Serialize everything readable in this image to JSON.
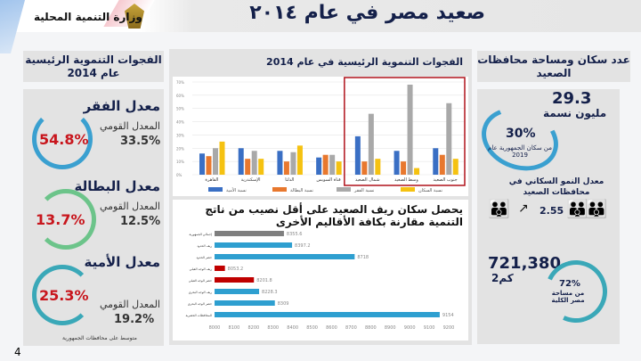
{
  "header": {
    "title": "صعيد مصر في عام ٢٠١٤",
    "ministry": "وزارة التنمية المحلية"
  },
  "left": {
    "title": "الفجوات التنموية الرئيسية عام 2014",
    "items": [
      {
        "heading": "معدل الفقر",
        "value": "54.8%",
        "national_label": "المعدل القومي",
        "national": "33.5%",
        "color": "#3aa0d0"
      },
      {
        "heading": "معدل البطالة",
        "value": "13.7%",
        "national_label": "المعدل القومي",
        "national": "12.5%",
        "color": "#6cc48a"
      },
      {
        "heading": "معدل الأمية",
        "value": "25.3%",
        "national_label": "المعدل القومي",
        "national": "19.2%",
        "color": "#3aa8b8"
      }
    ],
    "note": "متوسط على محافظات الجمهورية"
  },
  "chart_data": [
    {
      "type": "bar",
      "title": "الفجوات التنموية الرئيسية في عام 2014",
      "categories": [
        "القاهرة",
        "الإسكندرية",
        "الدلتا",
        "قناة السويس",
        "شمال الصعيد",
        "وسط الصعيد",
        "جنوب الصعيد"
      ],
      "ylim": [
        0,
        70
      ],
      "yticks": [
        "0%",
        "10%",
        "20%",
        "30%",
        "40%",
        "50%",
        "60%",
        "70%"
      ],
      "grid": true,
      "legend": "bottom",
      "highlight": [
        "شمال الصعيد",
        "وسط الصعيد",
        "جنوب الصعيد"
      ],
      "series": [
        {
          "name": "نسبة الأمية",
          "color": "#3a6fc4",
          "values": [
            16,
            20,
            18,
            13,
            29,
            18,
            20
          ]
        },
        {
          "name": "نسبة البطالة",
          "color": "#e8782e",
          "values": [
            14,
            12,
            10,
            15,
            10,
            10,
            15
          ]
        },
        {
          "name": "نسبة الفقر",
          "color": "#a9a9a9",
          "values": [
            20,
            18,
            17,
            15,
            46,
            68,
            54
          ]
        },
        {
          "name": "نسبة السكان",
          "color": "#f5c211",
          "values": [
            25,
            12,
            22,
            10,
            12,
            5,
            12
          ]
        }
      ]
    },
    {
      "type": "bar",
      "orientation": "horizontal",
      "title": "يحصل سكان ريف الصعيد على أقل نصيب من ناتج التنمية مقارنة بكافة الأقاليم الأخرى",
      "categories": [
        "إجمالي الجمهورية",
        "ريف الحدود",
        "حضر الحدود",
        "ريف الوجه القبلي",
        "حضر الوجه القبلي",
        "ريف الوجه البحري",
        "حضر الوجه البحري",
        "المحافظات الحضرية"
      ],
      "values": [
        8355.6,
        8397.2,
        8718,
        8053.2,
        8201.8,
        8228.3,
        8309,
        9154
      ],
      "labels": [
        "8355.6",
        "8397.2",
        "8718",
        "8053.2",
        "8201.8",
        "8228.3",
        "8309",
        "9154"
      ],
      "colors": [
        "#7f7f7f",
        "#2e9fd0",
        "#2e9fd0",
        "#c00000",
        "#c00000",
        "#2e9fd0",
        "#2e9fd0",
        "#2e9fd0"
      ],
      "xlim": [
        8000,
        9200
      ],
      "xticks": [
        "8000",
        "8100",
        "8200",
        "8300",
        "8400",
        "8500",
        "8600",
        "8700",
        "8800",
        "8900",
        "9000",
        "9100",
        "9200"
      ]
    }
  ],
  "right": {
    "title": "عدد سكان ومساحة محافظات الصعيد",
    "population": "29.3",
    "population_unit": "مليون نسمة",
    "share": "30%",
    "share_label": "من سكان الجمهورية عام 2019",
    "growth_label": "معدل النمو السكاني في محافظات الصعيد",
    "growth": "2.55",
    "area": "721,380",
    "area_unit": "كم2",
    "area_share": "72%",
    "area_share_label": "من مساحة مصر الكلية"
  },
  "page_number": "4"
}
